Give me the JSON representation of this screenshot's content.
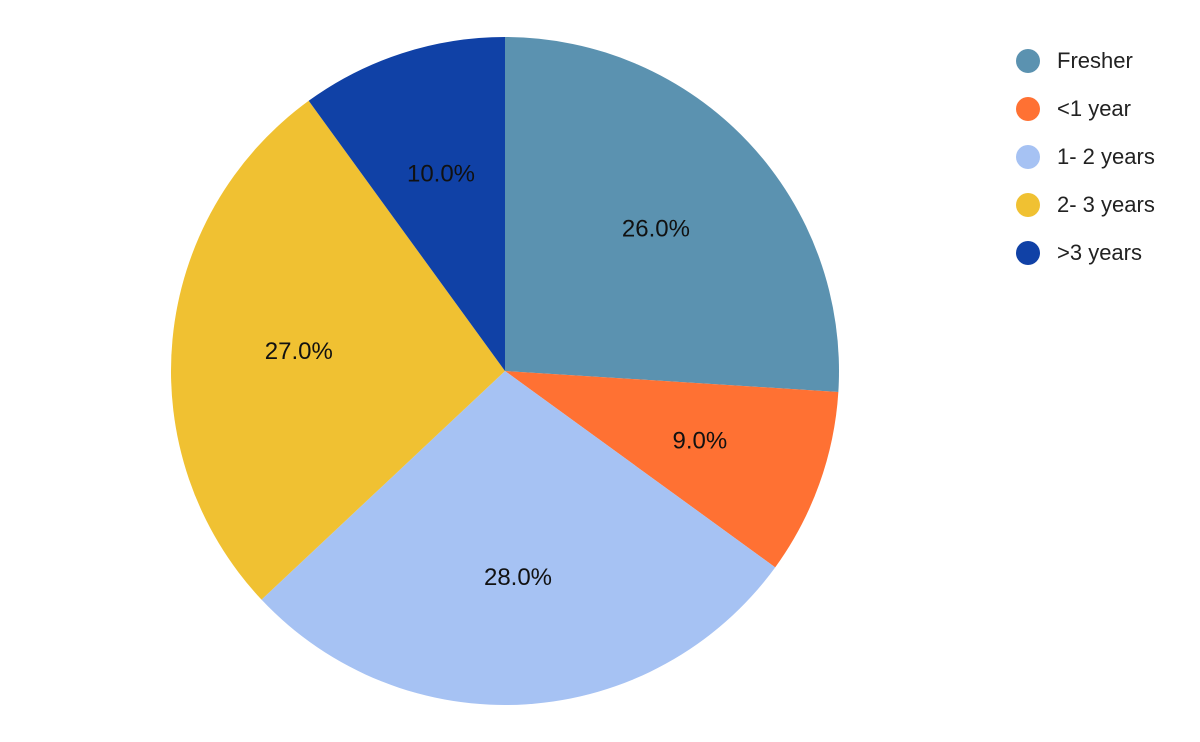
{
  "chart_data": {
    "type": "pie",
    "title": "",
    "legend_position": "top-right",
    "start_angle_deg": 0,
    "direction": "clockwise",
    "categories": [
      "Fresher",
      "<1 year",
      "1- 2 years",
      "2- 3 years",
      ">3 years"
    ],
    "values": [
      26.0,
      9.0,
      28.0,
      27.0,
      10.0
    ],
    "labels": [
      "26.0%",
      "9.0%",
      "28.0%",
      "27.0%",
      "10.0%"
    ],
    "colors": [
      "#5b92b0",
      "#ff7133",
      "#a6c2f3",
      "#f0c132",
      "#1041a6"
    ]
  },
  "legend": {
    "items": [
      {
        "label": "Fresher",
        "color": "#5b92b0"
      },
      {
        "label": "<1 year",
        "color": "#ff7133"
      },
      {
        "label": "1- 2 years",
        "color": "#a6c2f3"
      },
      {
        "label": "2- 3 years",
        "color": "#f0c132"
      },
      {
        "label": ">3 years",
        "color": "#1041a6"
      }
    ]
  }
}
